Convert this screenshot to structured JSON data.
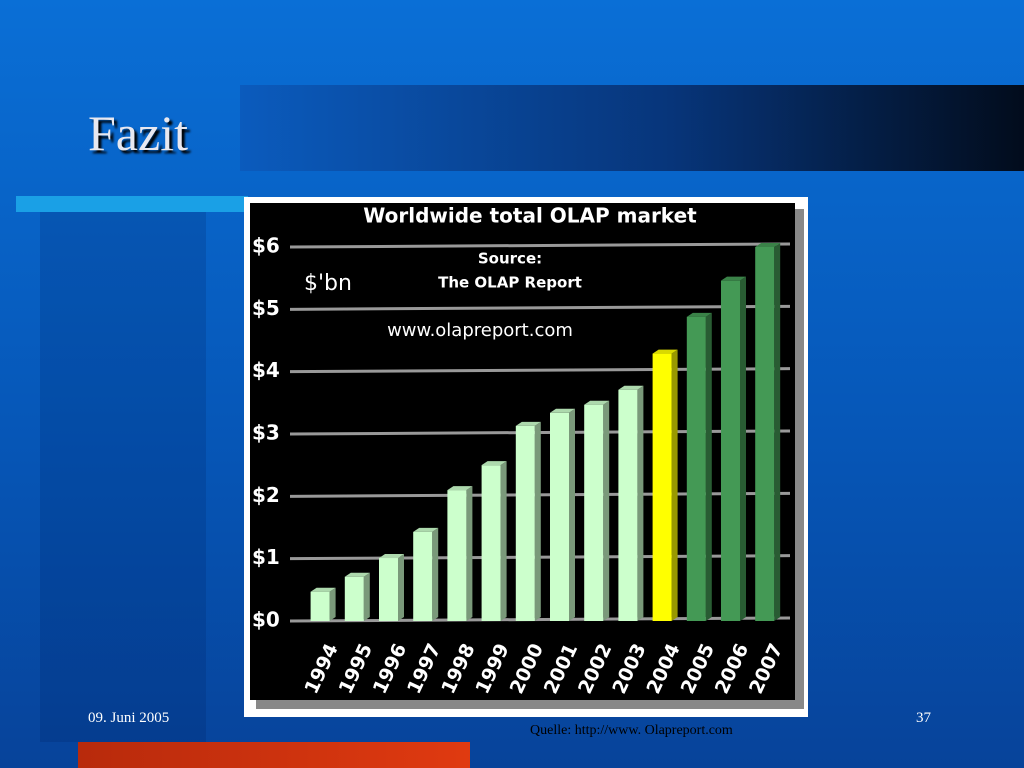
{
  "slide_title": "Fazit",
  "footer_date": "09. Juni 2005",
  "page_number": "37",
  "source_note": "Quelle: http://www. Olapreport.com",
  "chart_data": {
    "type": "bar",
    "title": "Worldwide total OLAP market",
    "annotations": [
      "$'bn",
      "Source:",
      "The OLAP Report",
      "www.olapreport.com"
    ],
    "categories": [
      "1994",
      "1995",
      "1996",
      "1997",
      "1998",
      "1999",
      "2000",
      "2001",
      "2002",
      "2003",
      "2004",
      "2005",
      "2006",
      "2007"
    ],
    "values": [
      0.47,
      0.71,
      1.01,
      1.43,
      2.1,
      2.5,
      3.13,
      3.34,
      3.47,
      3.71,
      4.29,
      4.88,
      5.46,
      6.0
    ],
    "colors": [
      "#ccffcc",
      "#ccffcc",
      "#ccffcc",
      "#ccffcc",
      "#ccffcc",
      "#ccffcc",
      "#ccffcc",
      "#ccffcc",
      "#ccffcc",
      "#ccffcc",
      "#ffff00",
      "#449955",
      "#449955",
      "#449955"
    ],
    "ylim": [
      0,
      6
    ],
    "yticks": [
      {
        "value": 0,
        "label": "$0"
      },
      {
        "value": 1,
        "label": "$1"
      },
      {
        "value": 2,
        "label": "$2"
      },
      {
        "value": 3,
        "label": "$3"
      },
      {
        "value": 4,
        "label": "$4"
      },
      {
        "value": 5,
        "label": "$5"
      },
      {
        "value": 6,
        "label": "$6"
      }
    ],
    "grid": true
  }
}
